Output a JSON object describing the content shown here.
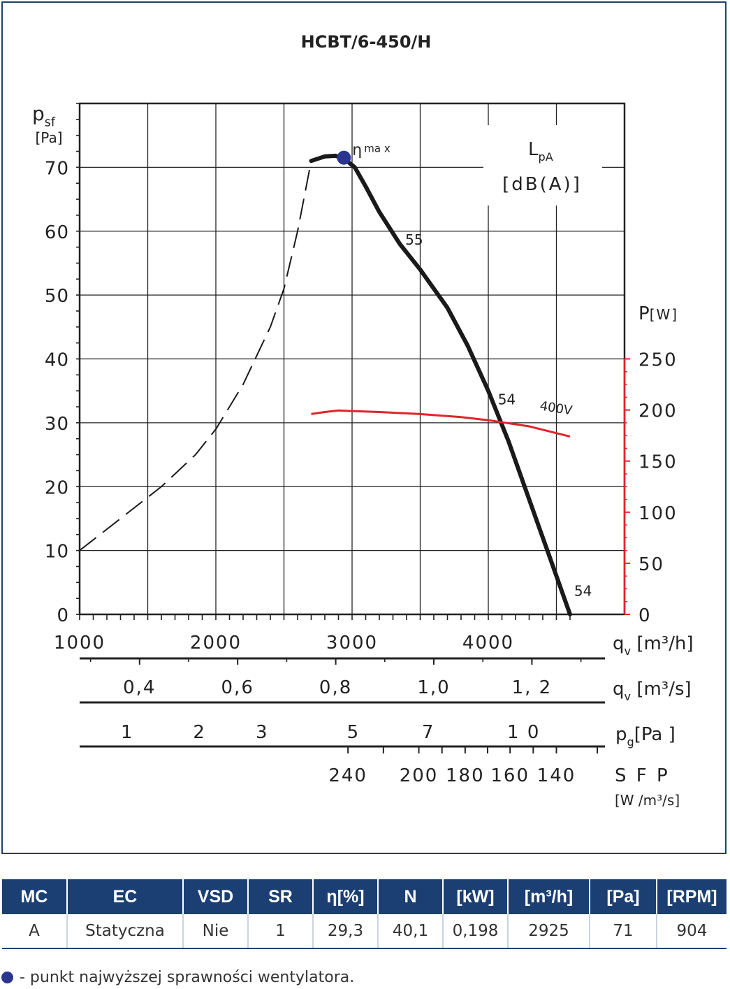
{
  "chart_data": {
    "type": "line",
    "title": "HCBT/6-450/H",
    "y_axis": {
      "label_main": "p",
      "label_sub": "sf",
      "unit": "[Pa]",
      "ylim": [
        0,
        80
      ],
      "ticks": [
        0,
        10,
        20,
        30,
        40,
        50,
        60,
        70
      ]
    },
    "x_axis": {
      "label_main": "q",
      "label_sub": "v",
      "unit": " [m³/h]",
      "xlim": [
        1000,
        5000
      ],
      "ticks": [
        "1000",
        "2000",
        "3000",
        "4000"
      ]
    },
    "power_axis": {
      "label": "P",
      "unit": "[W]",
      "ylim": [
        0,
        500
      ],
      "ticks": [
        "0",
        "50",
        "100",
        "150",
        "200",
        "250"
      ]
    },
    "secondary_axes": [
      {
        "label_main": "q",
        "label_sub": "v",
        "unit": " [m³/s]",
        "ticks": [
          {
            "label": "0,4",
            "value": 0.4
          },
          {
            "label": "0,6",
            "value": 0.6
          },
          {
            "label": "0,8",
            "value": 0.8
          },
          {
            "label": "1,0",
            "value": 1.0
          },
          {
            "label": "1, 2",
            "value": 1.2
          }
        ]
      },
      {
        "label_main": "p",
        "label_sub": "g",
        "unit": "[Pa ]",
        "ticks": [
          {
            "label": "1",
            "x": 1350
          },
          {
            "label": "2",
            "x": 1880
          },
          {
            "label": "3",
            "x": 2340
          },
          {
            "label": "5",
            "x": 3010
          },
          {
            "label": "7",
            "x": 3560
          },
          {
            "label": "1 0",
            "x": 4260
          }
        ]
      },
      {
        "label_main": "S F P",
        "unit": "[W /m³/s]",
        "ticks": [
          {
            "label": "240",
            "x": 2970
          },
          {
            "label": "200",
            "x": 3490
          },
          {
            "label": "180",
            "x": 3830
          },
          {
            "label": "160",
            "x": 4160
          },
          {
            "label": "140",
            "x": 4500
          }
        ]
      }
    ],
    "series": [
      {
        "role": "pressure-dashed",
        "points": [
          [
            1000,
            10
          ],
          [
            1300,
            15
          ],
          [
            1600,
            20
          ],
          [
            1850,
            25
          ],
          [
            2000,
            29
          ],
          [
            2200,
            36
          ],
          [
            2400,
            45
          ],
          [
            2500,
            51
          ],
          [
            2600,
            60
          ],
          [
            2700,
            71
          ]
        ]
      },
      {
        "role": "pressure-solid",
        "points": [
          [
            2700,
            71
          ],
          [
            2800,
            71.7
          ],
          [
            2880,
            71.8
          ],
          [
            2950,
            71.2
          ],
          [
            3020,
            70
          ],
          [
            3100,
            67
          ],
          [
            3200,
            63
          ],
          [
            3350,
            58
          ],
          [
            3500,
            54
          ],
          [
            3700,
            48
          ],
          [
            3850,
            42
          ],
          [
            4000,
            35
          ],
          [
            4150,
            27
          ],
          [
            4300,
            18
          ],
          [
            4450,
            9
          ],
          [
            4600,
            0
          ]
        ]
      },
      {
        "role": "power",
        "name": "400V",
        "points": [
          [
            2700,
            196
          ],
          [
            2800,
            198
          ],
          [
            2900,
            199.5
          ],
          [
            3000,
            199
          ],
          [
            3200,
            198
          ],
          [
            3500,
            196
          ],
          [
            3800,
            193
          ],
          [
            4000,
            190
          ],
          [
            4300,
            184
          ],
          [
            4600,
            174
          ]
        ]
      }
    ],
    "annotations": {
      "eta_max": {
        "symbol": "η",
        "label": "ma x",
        "x": 2940,
        "y": 71.5
      },
      "noise_label": "L",
      "noise_sub": "pA",
      "noise_unit": "[dB(A)]",
      "noise_values": [
        {
          "label": "55",
          "x": 3380,
          "y": 58
        },
        {
          "label": "54",
          "x": 4060,
          "y": 33
        },
        {
          "label": "54",
          "x": 4620,
          "y": 3
        }
      ],
      "voltage_label": "400V"
    },
    "colors": {
      "curve": "#1a1a1a",
      "power": "#e0242a",
      "noise": "#1aa35a",
      "eta": "#2a3590",
      "grid": "#222222"
    }
  },
  "table": {
    "headers": [
      "MC",
      "EC",
      "VSD",
      "SR",
      "η[%]",
      "N",
      "[kW]",
      "[m³/h]",
      "[Pa]",
      "[RPM]"
    ],
    "row": [
      "A",
      "Statyczna",
      "Nie",
      "1",
      "29,3",
      "40,1",
      "0,198",
      "2925",
      "71",
      "904"
    ]
  },
  "footnote": "- punkt najwyższej sprawności wentylatora."
}
